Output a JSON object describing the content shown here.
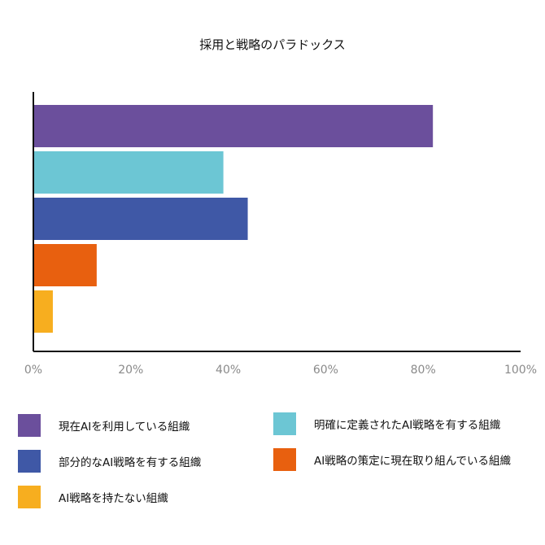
{
  "chart_data": {
    "type": "bar",
    "orientation": "horizontal",
    "title": "採用と戦略のパラドックス",
    "xlim": [
      0,
      100
    ],
    "x_ticks": [
      "0%",
      "20%",
      "40%",
      "60%",
      "80%",
      "100%"
    ],
    "grid": false,
    "legend_position": "bottom",
    "series": [
      {
        "name": "現在AIを利用している組織",
        "value": 82,
        "color": "#6b4f9c"
      },
      {
        "name": "明確に定義されたAI戦略を有する組織",
        "value": 39,
        "color": "#6cc6d4"
      },
      {
        "name": "部分的なAI戦略を有する組織",
        "value": 44,
        "color": "#3f58a6"
      },
      {
        "name": "AI戦略の策定に現在取り組んでいる組織",
        "value": 13,
        "color": "#e8600f"
      },
      {
        "name": "AI戦略を持たない組織",
        "value": 4,
        "color": "#f7ae1f"
      }
    ]
  }
}
